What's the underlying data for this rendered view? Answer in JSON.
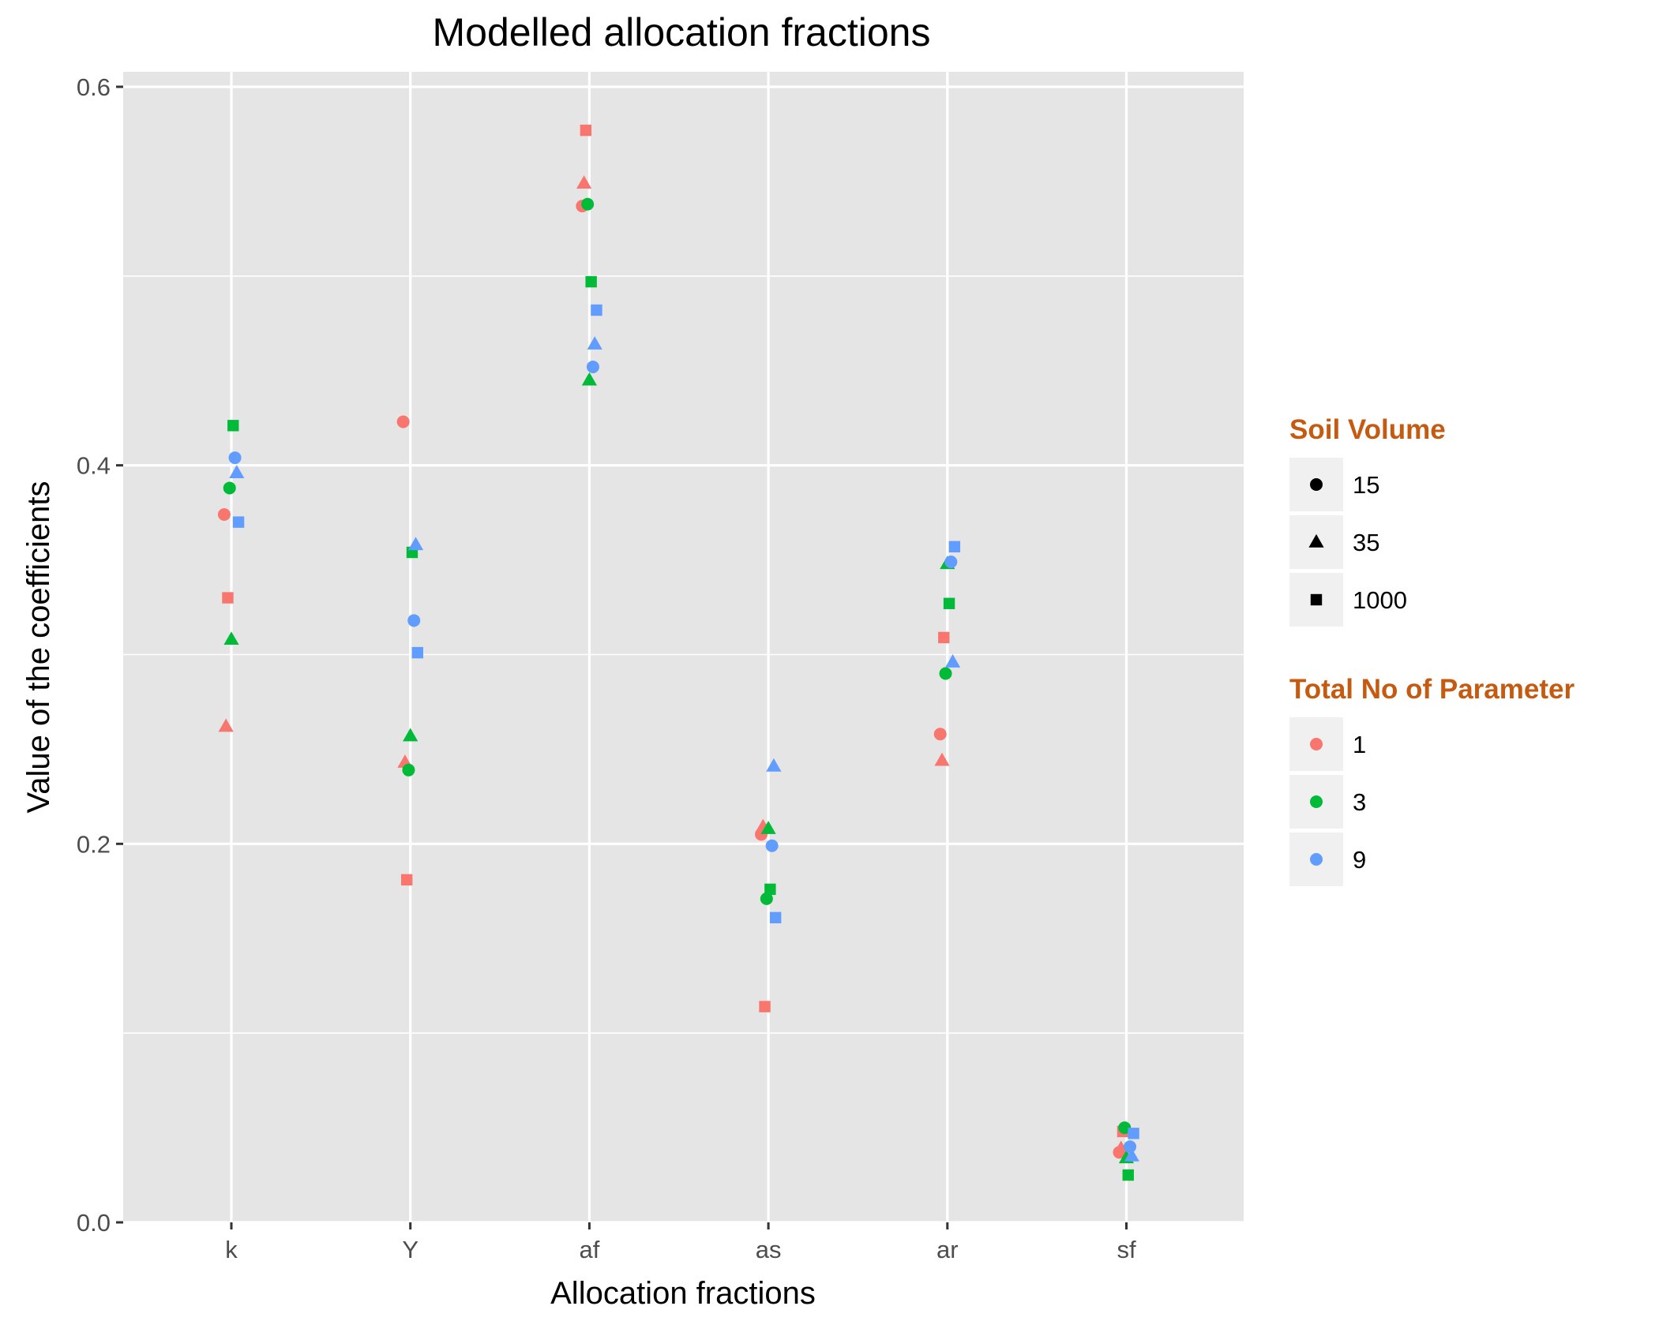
{
  "chart_data": {
    "type": "scatter",
    "title": "Modelled allocation fractions",
    "xlabel": "Allocation fractions",
    "ylabel": "Value of the coefficients",
    "categories": [
      "k",
      "Y",
      "af",
      "as",
      "ar",
      "sf"
    ],
    "ylim": [
      0,
      0.6
    ],
    "yticks": [
      "0.0",
      "0.2",
      "0.4",
      "0.6"
    ],
    "ytick_values": [
      0,
      0.2,
      0.4,
      0.6
    ],
    "grid": true,
    "legend_position": "right",
    "legends": [
      {
        "title": "Soil Volume",
        "key": "shape",
        "entries": [
          {
            "label": "15",
            "shape": "circle"
          },
          {
            "label": "35",
            "shape": "triangle"
          },
          {
            "label": "1000",
            "shape": "square"
          }
        ]
      },
      {
        "title": "Total No of Parameter",
        "key": "color",
        "entries": [
          {
            "label": "1",
            "color": "#F8766D"
          },
          {
            "label": "3",
            "color": "#00BA38"
          },
          {
            "label": "9",
            "color": "#619CFF"
          }
        ]
      }
    ],
    "colors": {
      "panel": "#E5E5E5",
      "grid": "#FFFFFF",
      "legend_title": "#C55A11",
      "legend_key_bg": "#F0F0F0"
    },
    "points": [
      {
        "cat": "k",
        "dx": -0.04,
        "y": 0.374,
        "shape": "circle",
        "param": "1"
      },
      {
        "cat": "k",
        "dx": -0.03,
        "y": 0.262,
        "shape": "triangle",
        "param": "1"
      },
      {
        "cat": "k",
        "dx": -0.02,
        "y": 0.33,
        "shape": "square",
        "param": "1"
      },
      {
        "cat": "k",
        "dx": -0.01,
        "y": 0.388,
        "shape": "circle",
        "param": "3"
      },
      {
        "cat": "k",
        "dx": 0.0,
        "y": 0.308,
        "shape": "triangle",
        "param": "3"
      },
      {
        "cat": "k",
        "dx": 0.01,
        "y": 0.421,
        "shape": "square",
        "param": "3"
      },
      {
        "cat": "k",
        "dx": 0.02,
        "y": 0.404,
        "shape": "circle",
        "param": "9"
      },
      {
        "cat": "k",
        "dx": 0.03,
        "y": 0.396,
        "shape": "triangle",
        "param": "9"
      },
      {
        "cat": "k",
        "dx": 0.04,
        "y": 0.37,
        "shape": "square",
        "param": "9"
      },
      {
        "cat": "Y",
        "dx": -0.04,
        "y": 0.423,
        "shape": "circle",
        "param": "1"
      },
      {
        "cat": "Y",
        "dx": -0.03,
        "y": 0.243,
        "shape": "triangle",
        "param": "1"
      },
      {
        "cat": "Y",
        "dx": -0.02,
        "y": 0.181,
        "shape": "square",
        "param": "1"
      },
      {
        "cat": "Y",
        "dx": -0.01,
        "y": 0.239,
        "shape": "circle",
        "param": "3"
      },
      {
        "cat": "Y",
        "dx": 0.0,
        "y": 0.257,
        "shape": "triangle",
        "param": "3"
      },
      {
        "cat": "Y",
        "dx": 0.01,
        "y": 0.354,
        "shape": "square",
        "param": "3"
      },
      {
        "cat": "Y",
        "dx": 0.02,
        "y": 0.318,
        "shape": "circle",
        "param": "9"
      },
      {
        "cat": "Y",
        "dx": 0.03,
        "y": 0.358,
        "shape": "triangle",
        "param": "9"
      },
      {
        "cat": "Y",
        "dx": 0.04,
        "y": 0.301,
        "shape": "square",
        "param": "9"
      },
      {
        "cat": "af",
        "dx": -0.04,
        "y": 0.537,
        "shape": "circle",
        "param": "1"
      },
      {
        "cat": "af",
        "dx": -0.03,
        "y": 0.549,
        "shape": "triangle",
        "param": "1"
      },
      {
        "cat": "af",
        "dx": -0.02,
        "y": 0.577,
        "shape": "square",
        "param": "1"
      },
      {
        "cat": "af",
        "dx": -0.01,
        "y": 0.538,
        "shape": "circle",
        "param": "3"
      },
      {
        "cat": "af",
        "dx": 0.0,
        "y": 0.445,
        "shape": "triangle",
        "param": "3"
      },
      {
        "cat": "af",
        "dx": 0.01,
        "y": 0.497,
        "shape": "square",
        "param": "3"
      },
      {
        "cat": "af",
        "dx": 0.02,
        "y": 0.452,
        "shape": "circle",
        "param": "9"
      },
      {
        "cat": "af",
        "dx": 0.03,
        "y": 0.464,
        "shape": "triangle",
        "param": "9"
      },
      {
        "cat": "af",
        "dx": 0.04,
        "y": 0.482,
        "shape": "square",
        "param": "9"
      },
      {
        "cat": "as",
        "dx": -0.04,
        "y": 0.205,
        "shape": "circle",
        "param": "1"
      },
      {
        "cat": "as",
        "dx": -0.03,
        "y": 0.209,
        "shape": "triangle",
        "param": "1"
      },
      {
        "cat": "as",
        "dx": -0.02,
        "y": 0.114,
        "shape": "square",
        "param": "1"
      },
      {
        "cat": "as",
        "dx": -0.01,
        "y": 0.171,
        "shape": "circle",
        "param": "3"
      },
      {
        "cat": "as",
        "dx": 0.0,
        "y": 0.208,
        "shape": "triangle",
        "param": "3"
      },
      {
        "cat": "as",
        "dx": 0.01,
        "y": 0.176,
        "shape": "square",
        "param": "3"
      },
      {
        "cat": "as",
        "dx": 0.02,
        "y": 0.199,
        "shape": "circle",
        "param": "9"
      },
      {
        "cat": "as",
        "dx": 0.03,
        "y": 0.241,
        "shape": "triangle",
        "param": "9"
      },
      {
        "cat": "as",
        "dx": 0.04,
        "y": 0.161,
        "shape": "square",
        "param": "9"
      },
      {
        "cat": "ar",
        "dx": -0.04,
        "y": 0.258,
        "shape": "circle",
        "param": "1"
      },
      {
        "cat": "ar",
        "dx": -0.03,
        "y": 0.244,
        "shape": "triangle",
        "param": "1"
      },
      {
        "cat": "ar",
        "dx": -0.02,
        "y": 0.309,
        "shape": "square",
        "param": "1"
      },
      {
        "cat": "ar",
        "dx": -0.01,
        "y": 0.29,
        "shape": "circle",
        "param": "3"
      },
      {
        "cat": "ar",
        "dx": 0.0,
        "y": 0.348,
        "shape": "triangle",
        "param": "3"
      },
      {
        "cat": "ar",
        "dx": 0.01,
        "y": 0.327,
        "shape": "square",
        "param": "3"
      },
      {
        "cat": "ar",
        "dx": 0.02,
        "y": 0.349,
        "shape": "circle",
        "param": "9"
      },
      {
        "cat": "ar",
        "dx": 0.03,
        "y": 0.296,
        "shape": "triangle",
        "param": "9"
      },
      {
        "cat": "ar",
        "dx": 0.04,
        "y": 0.357,
        "shape": "square",
        "param": "9"
      },
      {
        "cat": "sf",
        "dx": -0.04,
        "y": 0.037,
        "shape": "circle",
        "param": "1"
      },
      {
        "cat": "sf",
        "dx": -0.03,
        "y": 0.039,
        "shape": "triangle",
        "param": "1"
      },
      {
        "cat": "sf",
        "dx": -0.02,
        "y": 0.048,
        "shape": "square",
        "param": "1"
      },
      {
        "cat": "sf",
        "dx": -0.01,
        "y": 0.05,
        "shape": "circle",
        "param": "3"
      },
      {
        "cat": "sf",
        "dx": 0.0,
        "y": 0.034,
        "shape": "triangle",
        "param": "3"
      },
      {
        "cat": "sf",
        "dx": 0.01,
        "y": 0.025,
        "shape": "square",
        "param": "3"
      },
      {
        "cat": "sf",
        "dx": 0.02,
        "y": 0.04,
        "shape": "circle",
        "param": "9"
      },
      {
        "cat": "sf",
        "dx": 0.03,
        "y": 0.035,
        "shape": "triangle",
        "param": "9"
      },
      {
        "cat": "sf",
        "dx": 0.04,
        "y": 0.047,
        "shape": "square",
        "param": "9"
      }
    ]
  }
}
